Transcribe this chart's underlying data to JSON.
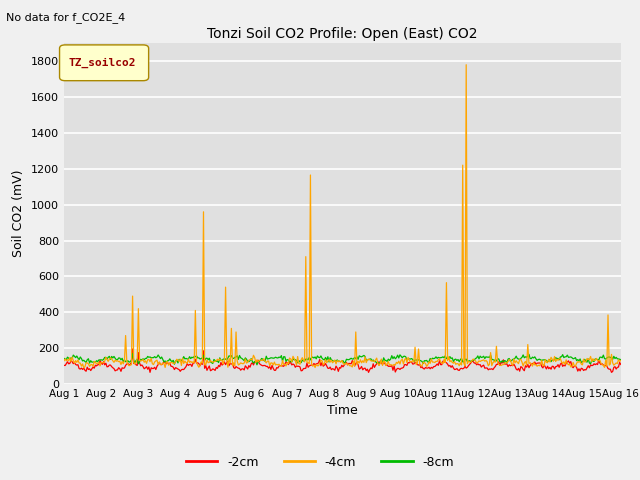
{
  "title": "Tonzi Soil CO2 Profile: Open (East) CO2",
  "title_note": "No data for f_CO2E_4",
  "ylabel": "Soil CO2 (mV)",
  "xlabel": "Time",
  "legend_label": "TZ_soilco2",
  "series_labels": [
    "-2cm",
    "-4cm",
    "-8cm"
  ],
  "series_colors": [
    "#ff0000",
    "#ffa500",
    "#00bb00"
  ],
  "ylim": [
    0,
    1900
  ],
  "yticks": [
    0,
    200,
    400,
    600,
    800,
    1000,
    1200,
    1400,
    1600,
    1800
  ],
  "bg_color": "#e0e0e0",
  "fig_color": "#f0f0f0",
  "n_points": 480,
  "x_start": 0,
  "x_end": 15,
  "x_tick_positions": [
    0,
    1,
    2,
    3,
    4,
    5,
    6,
    7,
    8,
    9,
    10,
    11,
    12,
    13,
    14,
    15
  ],
  "x_tick_labels": [
    "Aug 1",
    "Aug 2",
    "Aug 3",
    "Aug 4",
    "Aug 5",
    "Aug 6",
    "Aug 7",
    "Aug 8",
    "Aug 9",
    "Aug 10",
    "Aug 11",
    "Aug 12",
    "Aug 13",
    "Aug 14",
    "Aug 15",
    "Aug 16"
  ]
}
